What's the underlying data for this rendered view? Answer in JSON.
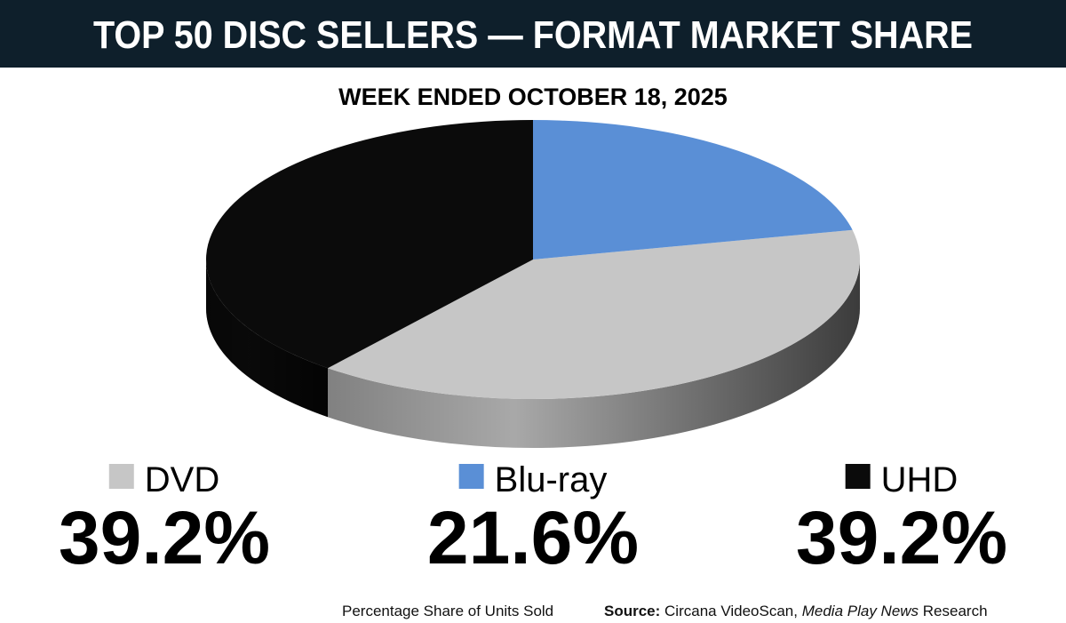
{
  "chart_data": {
    "type": "pie3d",
    "title": "TOP 50 DISC SELLERS — FORMAT MARKET SHARE",
    "subtitle": "WEEK ENDED OCTOBER 18, 2025",
    "categories": [
      "DVD",
      "Blu-ray",
      "UHD"
    ],
    "values": [
      39.2,
      21.6,
      39.2
    ],
    "value_labels": [
      "39.2%",
      "21.6%",
      "39.2%"
    ],
    "colors": [
      "#c6c6c6",
      "#5a8fd6",
      "#0b0b0b"
    ],
    "note": "Percentage Share of Units Sold",
    "source": {
      "label": "Source:",
      "text": "Circana VideoScan,",
      "publication": "Media Play News",
      "suffix": "Research"
    }
  }
}
